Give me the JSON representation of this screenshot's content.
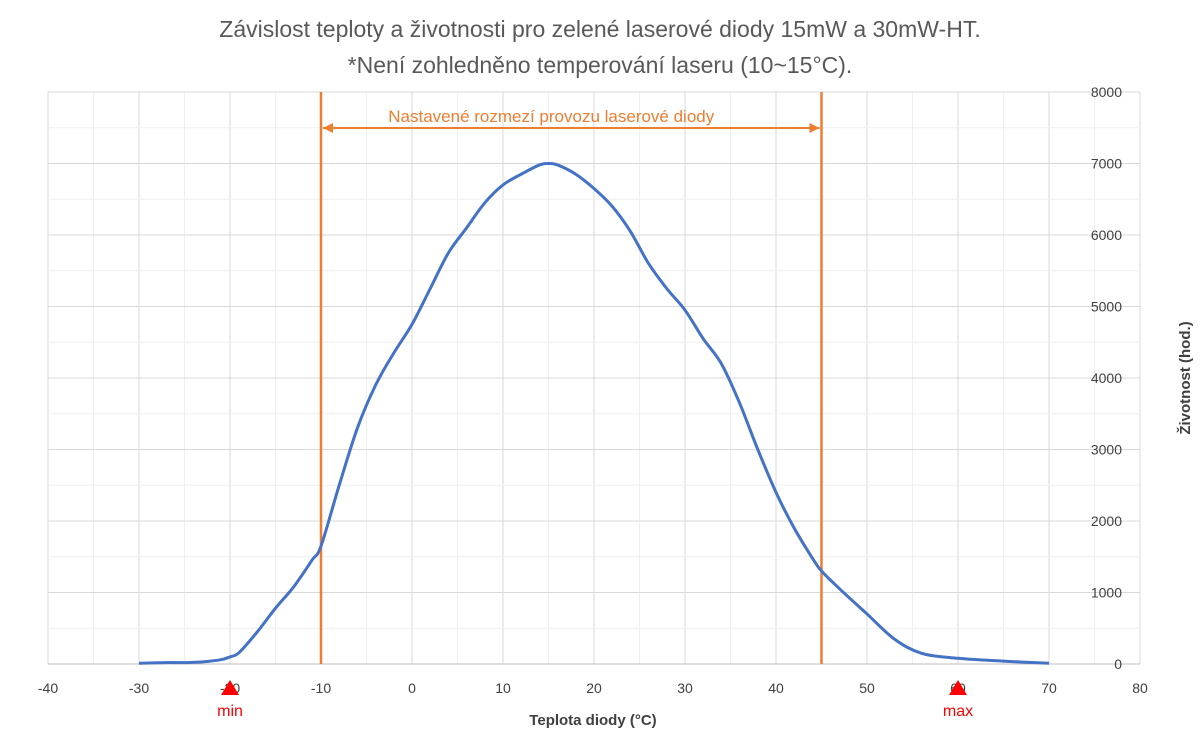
{
  "chart_data": {
    "type": "line",
    "title": "Závislost teploty a životnosti pro zelené laserové diody 15mW a 30mW-HT.",
    "subtitle": "*Není zohledněno temperování laseru (10~15°C).",
    "xlabel": "Teplota diody (°C)",
    "ylabel": "Životnost (hod.)",
    "xlim": [
      -40,
      80
    ],
    "ylim": [
      0,
      8000
    ],
    "x_ticks": [
      "-40",
      "-30",
      "-20",
      "-10",
      "0",
      "10",
      "20",
      "30",
      "40",
      "50",
      "60",
      "70",
      "80"
    ],
    "y_ticks": [
      "0",
      "1000",
      "2000",
      "3000",
      "4000",
      "5000",
      "6000",
      "7000",
      "8000"
    ],
    "y_axis_position": "right",
    "grid": true,
    "series": [
      {
        "color": "#4472C4",
        "x": [
          -30,
          -27,
          -25,
          -23,
          -21,
          -20,
          -19,
          -17,
          -15,
          -13,
          -11,
          -10,
          -8,
          -6,
          -4,
          -2,
          0,
          2,
          4,
          6,
          8,
          10,
          12,
          14,
          15,
          16,
          18,
          20,
          22,
          24,
          26,
          28,
          30,
          32,
          34,
          36,
          38,
          40,
          42,
          44,
          45,
          47,
          50,
          53,
          56,
          60,
          65,
          70
        ],
        "y": [
          10,
          20,
          20,
          30,
          60,
          100,
          160,
          450,
          780,
          1080,
          1450,
          1650,
          2500,
          3300,
          3900,
          4350,
          4750,
          5250,
          5750,
          6100,
          6450,
          6700,
          6850,
          6980,
          7000,
          6980,
          6850,
          6650,
          6400,
          6050,
          5600,
          5250,
          4950,
          4550,
          4200,
          3650,
          3000,
          2400,
          1900,
          1480,
          1300,
          1050,
          700,
          350,
          150,
          80,
          40,
          10
        ]
      }
    ],
    "vertical_lines": [
      {
        "x": -10,
        "color": "#ED7D31"
      },
      {
        "x": 45,
        "color": "#ED7D31"
      }
    ],
    "range_annotation": {
      "from": -10,
      "to": 45,
      "label": "Nastavené rozmezí provozu laserové diody",
      "color": "#ED7D31"
    },
    "markers": [
      {
        "x": -20,
        "label": "min",
        "color": "#FF0000"
      },
      {
        "x": 60,
        "label": "max",
        "color": "#FF0000"
      }
    ]
  }
}
